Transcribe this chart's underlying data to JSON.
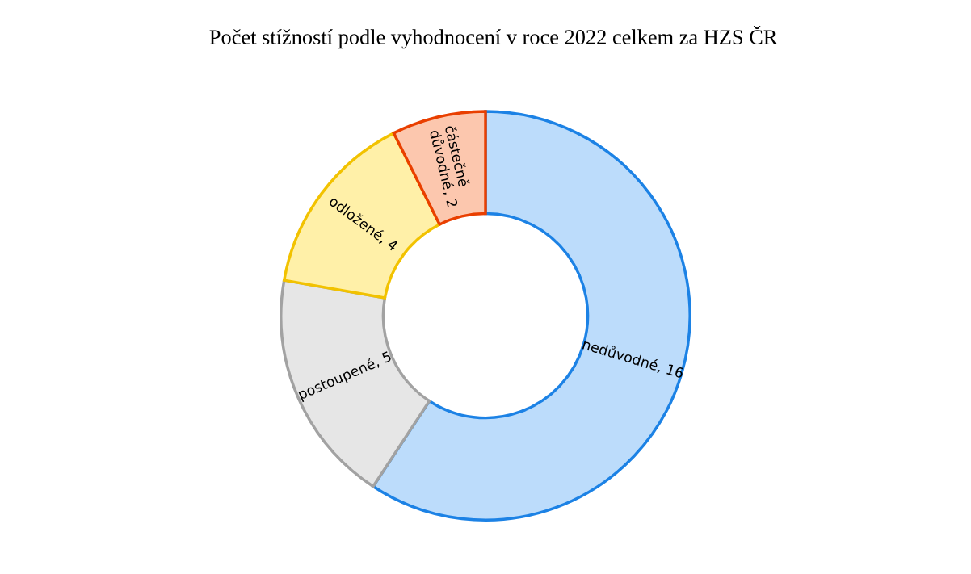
{
  "chart_data": {
    "type": "donut",
    "title": "Počet stížností podle vyhodnocení v roce 2022 celkem za HZS ČR",
    "categories": [
      "nedůvodné",
      "postoupené",
      "odložené",
      "částečně důvodné"
    ],
    "values": [
      16,
      5,
      4,
      2
    ],
    "colors": [
      "#bcdcfb",
      "#e6e6e6",
      "#fff0a8",
      "#fcc7ae"
    ],
    "value_labels": [
      ", 16",
      ", 5",
      ", 4",
      ", 2"
    ]
  }
}
